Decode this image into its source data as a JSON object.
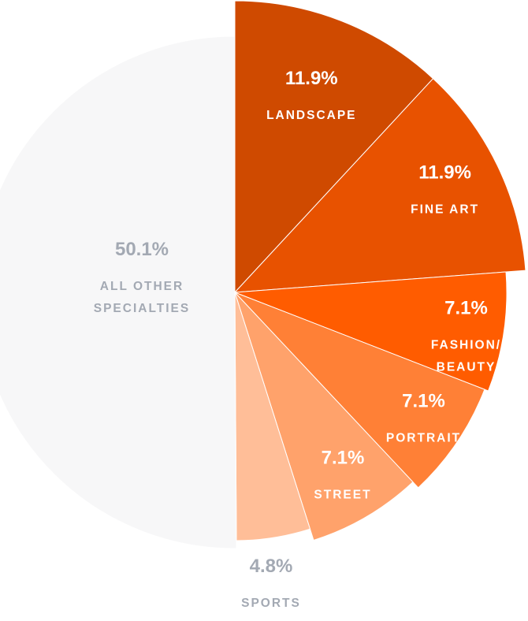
{
  "chart_data": {
    "type": "pie",
    "title": "",
    "slices": [
      {
        "label": "LANDSCAPE",
        "value": 11.9,
        "value_label": "11.9%",
        "color": "#cf4a00",
        "exploded": true
      },
      {
        "label": "FINE ART",
        "value": 11.9,
        "value_label": "11.9%",
        "color": "#e85200",
        "exploded": true
      },
      {
        "label": "FASHION/ BEAUTY",
        "value": 7.1,
        "value_label": "7.1%",
        "color": "#ff5c00",
        "exploded": true
      },
      {
        "label": "PORTRAIT",
        "value": 7.1,
        "value_label": "7.1%",
        "color": "#ff8036",
        "exploded": true
      },
      {
        "label": "STREET",
        "value": 7.1,
        "value_label": "7.1%",
        "color": "#ffa26b",
        "exploded": true
      },
      {
        "label": "SPORTS",
        "value": 4.8,
        "value_label": "4.8%",
        "color": "#ffbe98",
        "exploded": false
      },
      {
        "label": "ALL OTHER SPECIALTIES",
        "value": 50.1,
        "value_label": "50.1%",
        "color": "#f7f7f8",
        "exploded": false
      }
    ],
    "label_colors": {
      "on_slice": "#ffffff",
      "outside": "#a3a9b3"
    }
  }
}
